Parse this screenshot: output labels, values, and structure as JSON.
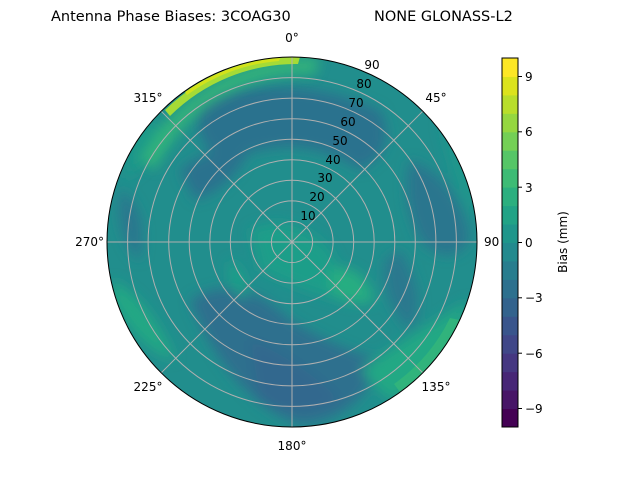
{
  "chart_data": {
    "type": "heatmap",
    "subtype": "polar-contourf",
    "title": "Antenna Phase Biases: 3COAG30",
    "subtitle": "NONE GLONASS-L2",
    "angular_axis": {
      "zero_location": "N",
      "direction": "clockwise",
      "tick_labels": [
        "0°",
        "45°",
        "90",
        "135°",
        "180°",
        "225°",
        "270°",
        "315°"
      ],
      "tick_angles": [
        0,
        45,
        90,
        135,
        180,
        225,
        270,
        315
      ]
    },
    "radial_axis": {
      "range": [
        0,
        90
      ],
      "tick_labels": [
        "10",
        "20",
        "30",
        "40",
        "50",
        "60",
        "70",
        "80",
        "90"
      ],
      "tick_values": [
        10,
        20,
        30,
        40,
        50,
        60,
        70,
        80,
        90
      ],
      "label_angle_deg": 22.5
    },
    "grid": true,
    "colorbar": {
      "label": "Bias (mm)",
      "range": [
        -10,
        10
      ],
      "ticks": [
        9,
        6,
        3,
        0,
        -3,
        -6,
        -9
      ],
      "tick_labels": [
        "9",
        "6",
        "3",
        "0",
        "−3",
        "−6",
        "−9"
      ],
      "levels": 20,
      "colormap": "viridis",
      "position": "right"
    },
    "regions": [
      {
        "description": "center (zenith 0-20)",
        "approx_bias_mm": 0.5
      },
      {
        "description": "ring 40-70 north (azimuth ~315-30)",
        "approx_bias_mm": -2
      },
      {
        "description": "south band (azimuth 180-240, zenith 40-80)",
        "approx_bias_mm": -2.5
      },
      {
        "description": "southeast lobe (azimuth ~135, zenith 20-40)",
        "approx_bias_mm": 2
      },
      {
        "description": "outer rim northwest (azimuth 300-350, zenith 85-90)",
        "approx_bias_mm": 8.5
      },
      {
        "description": "outer rim southeast (azimuth 130-150, zenith 80-90)",
        "approx_bias_mm": 4
      },
      {
        "description": "outer rim west (azimuth 240-250)",
        "approx_bias_mm": 3
      },
      {
        "description": "east band (azimuth 60-110, zenith 60-90)",
        "approx_bias_mm": -1.5
      }
    ]
  },
  "colors": {
    "viridis_levels": [
      "#440154",
      "#481a6c",
      "#472f7d",
      "#414487",
      "#39568c",
      "#31688e",
      "#2a788e",
      "#23888e",
      "#1f988b",
      "#22a884",
      "#35b779",
      "#54c568",
      "#7ad151",
      "#a5db36",
      "#d2e21b",
      "#fde725"
    ]
  }
}
